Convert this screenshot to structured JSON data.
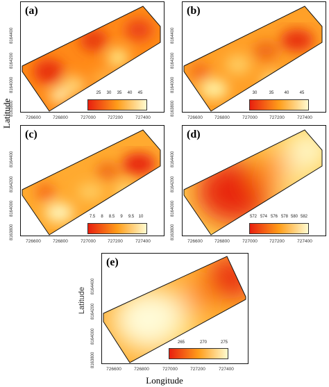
{
  "axes": {
    "y_label_left": "Latitude",
    "y_label_e": "Latitude",
    "x_label": "Longitude"
  },
  "x_ticks": [
    "726600",
    "726800",
    "727000",
    "727200",
    "727400"
  ],
  "y_ticks": [
    "8163800",
    "8164000",
    "8164200",
    "8164400"
  ],
  "panels": [
    {
      "id": "a",
      "label": "(a)",
      "legend_ticks": [
        "25",
        "30",
        "35",
        "40",
        "45"
      ]
    },
    {
      "id": "b",
      "label": "(b)",
      "legend_ticks": [
        "30",
        "35",
        "40",
        "45"
      ]
    },
    {
      "id": "c",
      "label": "(c)",
      "legend_ticks": [
        "7.5",
        "8",
        "8.5",
        "9",
        "9.5",
        "10"
      ]
    },
    {
      "id": "d",
      "label": "(d)",
      "legend_ticks": [
        "572",
        "574",
        "576",
        "578",
        "580",
        "582"
      ]
    },
    {
      "id": "e",
      "label": "(e)",
      "legend_ticks": [
        "265",
        "270",
        "275"
      ]
    }
  ],
  "colors": {
    "low": "#e8200f",
    "mid": "#ff9d1a",
    "high": "#fffbd0"
  }
}
